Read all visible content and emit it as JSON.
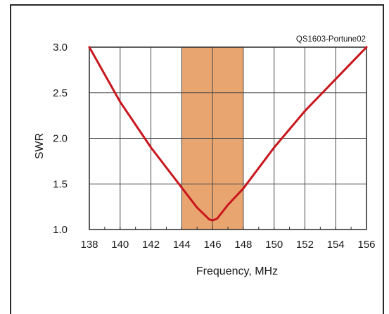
{
  "chart_data": {
    "type": "line",
    "title": "",
    "annotation": "QS1603-Portune02",
    "xlabel": "Frequency, MHz",
    "ylabel": "SWR",
    "xlim": [
      138,
      156
    ],
    "ylim": [
      1.0,
      3.0
    ],
    "x_ticks": [
      138,
      140,
      142,
      144,
      146,
      148,
      150,
      152,
      154,
      156
    ],
    "y_ticks": [
      1.0,
      1.5,
      2.0,
      2.5,
      3.0
    ],
    "y_tick_labels": [
      "1.0",
      "1.5",
      "2.0",
      "2.5",
      "3.0"
    ],
    "highlight_band": {
      "x_start": 144,
      "x_end": 148,
      "color": "#e9a56f"
    },
    "grid": true,
    "series": [
      {
        "color": "#c8161d",
        "x": [
          138,
          140,
          142,
          144,
          145,
          145.8,
          146,
          146.3,
          147,
          148,
          150,
          152,
          154,
          156
        ],
        "y": [
          3.0,
          2.4,
          1.9,
          1.46,
          1.24,
          1.11,
          1.1,
          1.12,
          1.27,
          1.45,
          1.9,
          2.3,
          2.65,
          3.0
        ]
      }
    ]
  }
}
